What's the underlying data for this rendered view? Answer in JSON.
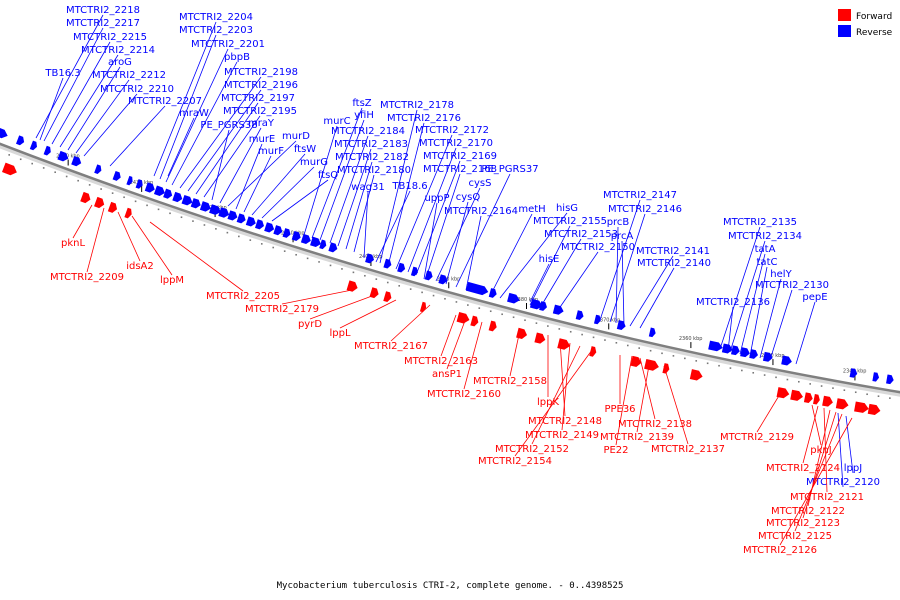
{
  "caption": "Mycobacterium tuberculosis CTRI-2, complete genome. - 0..4398525",
  "legend": [
    {
      "label": "Forward",
      "color": "#ff0000"
    },
    {
      "label": "Reverse",
      "color": "#0000ff"
    }
  ],
  "colors": {
    "forward": "#ff0000",
    "reverse": "#0000ff",
    "backbone": "#7f7f7f"
  },
  "ruler_ticks": [
    "2440 kbp",
    "2430 kbp",
    "2420 kbp",
    "2410 kbp",
    "2400 kbp",
    "2390 kbp",
    "2380 kbp",
    "2370 kbp",
    "2360 kbp",
    "2350 kbp",
    "2340 kbp"
  ],
  "reverse_labels": [
    "MTCTRI2_2218",
    "MTCTRI2_2217",
    "MTCTRI2_2215",
    "MTCTRI2_2214",
    "aroG",
    "TB16.3",
    "MTCTRI2_2212",
    "MTCTRI2_2210",
    "MTCTRI2_2207",
    "MTCTRI2_2204",
    "MTCTRI2_2203",
    "MTCTRI2_2201",
    "pbpB",
    "MTCTRI2_2198",
    "MTCTRI2_2196",
    "MTCTRI2_2197",
    "mraW",
    "MTCTRI2_2195",
    "PE_PGRS38",
    "mraY",
    "murD",
    "murE",
    "murF",
    "ftsW",
    "murG",
    "ftsQ",
    "ftsZ",
    "yfiH",
    "murC",
    "MTCTRI2_2184",
    "MTCTRI2_2183",
    "MTCTRI2_2182",
    "MTCTRI2_2180",
    "wag31",
    "MTCTRI2_2178",
    "MTCTRI2_2176",
    "MTCTRI2_2172",
    "MTCTRI2_2170",
    "MTCTRI2_2169",
    "MTCTRI2_2168",
    "TB18.6",
    "cysS",
    "uppP",
    "cysQ",
    "PE_PGRS37",
    "MTCTRI2_2164",
    "metH",
    "hisG",
    "MTCTRI2_2155",
    "MTCTRI2_2153",
    "MTCTRI2_2150",
    "hisE",
    "MTCTRI2_2147",
    "MTCTRI2_2146",
    "prcB",
    "prcA",
    "MTCTRI2_2141",
    "MTCTRI2_2140",
    "MTCTRI2_2135",
    "MTCTRI2_2134",
    "tatA",
    "tatC",
    "helY",
    "MTCTRI2_2130",
    "MTCTRI2_2136",
    "pepE",
    "lppJ",
    "MTCTRI2_2120"
  ],
  "forward_labels": [
    "pknL",
    "MTCTRI2_2209",
    "idsA2",
    "lppM",
    "MTCTRI2_2205",
    "MTCTRI2_2179",
    "pyrD",
    "lppL",
    "MTCTRI2_2167",
    "MTCTRI2_2163",
    "ansP1",
    "MTCTRI2_2160",
    "MTCTRI2_2158",
    "lppK",
    "MTCTRI2_2148",
    "MTCTRI2_2149",
    "MTCTRI2_2152",
    "MTCTRI2_2154",
    "PPE36",
    "MTCTRI2_2138",
    "MTCTRI2_2139",
    "PE22",
    "MTCTRI2_2137",
    "MTCTRI2_2129",
    "pknJ",
    "MTCTRI2_2124",
    "MTCTRI2_2121",
    "MTCTRI2_2122",
    "MTCTRI2_2123",
    "MTCTRI2_2125",
    "MTCTRI2_2126"
  ]
}
